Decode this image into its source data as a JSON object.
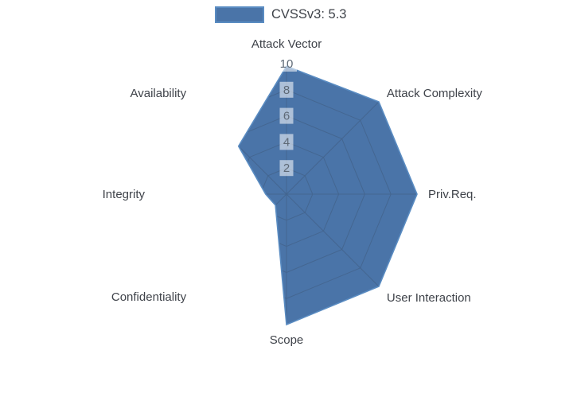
{
  "legend": {
    "label": "CVSSv3: 5.3"
  },
  "colors": {
    "background": "#ffffff",
    "trace_fill": "#4a74a8",
    "trace_line": "#5a8cc2",
    "grid_line": "#44658e",
    "tick_text": "#5f6a77",
    "tick_bg": "rgba(255,255,255,0.55)",
    "axis_label": "#3f434a",
    "legend_text": "#3f434a"
  },
  "chart_data": {
    "type": "radar",
    "title": "",
    "series_name": "CVSSv3: 5.3",
    "categories": [
      "Attack Vector",
      "Attack Complexity",
      "Priv.Req.",
      "User Interaction",
      "Scope",
      "Confidentiality",
      "Integrity",
      "Availability"
    ],
    "values": [
      9.8,
      10,
      10,
      10,
      10,
      1.2,
      1.6,
      5.2
    ],
    "radial_ticks": [
      2,
      4,
      6,
      8,
      10
    ],
    "range": [
      0,
      10
    ],
    "grid_shape": "polygon",
    "legend_position": "top-center"
  }
}
